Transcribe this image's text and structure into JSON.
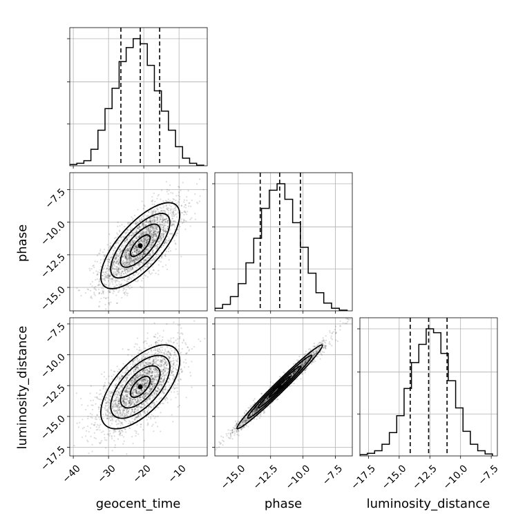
{
  "chart_data": {
    "type": "corner",
    "parameters": [
      "geocent_time",
      "phase",
      "luminosity_distance"
    ],
    "axis_labels": [
      "geocent_time",
      "phase",
      "luminosity_distance"
    ],
    "ranges": {
      "geocent_time": [
        -41,
        -2
      ],
      "phase": [
        -16.8,
        -6.2
      ],
      "luminosity_distance": [
        -18.2,
        -7.0
      ]
    },
    "ticks": {
      "geocent_time": [
        -40,
        -30,
        -20,
        -10
      ],
      "phase": [
        -15.0,
        -12.5,
        -10.0,
        -7.5
      ],
      "luminosity_distance": [
        -17.5,
        -15.0,
        -12.5,
        -10.0,
        -7.5
      ]
    },
    "tick_labels": {
      "geocent_time": [
        "−40",
        "−30",
        "−20",
        "−10"
      ],
      "phase": [
        "−15.0",
        "−12.5",
        "−10.0",
        "−7.5"
      ],
      "luminosity_distance": [
        "−17.5",
        "−15.0",
        "−12.5",
        "−10.0",
        "−7.5"
      ]
    },
    "quantiles": {
      "geocent_time": [
        -26.5,
        -21.0,
        -15.5
      ],
      "phase": [
        -13.3,
        -11.8,
        -10.2
      ],
      "luminosity_distance": [
        -14.1,
        -12.6,
        -11.1
      ]
    },
    "histograms": {
      "geocent_time": {
        "edges": [
          -41,
          -39,
          -37,
          -35,
          -33,
          -31,
          -29,
          -27,
          -25,
          -23,
          -21,
          -19,
          -17,
          -15,
          -13,
          -11,
          -9,
          -7,
          -5,
          -3
        ],
        "counts": [
          0.01,
          0.02,
          0.04,
          0.13,
          0.28,
          0.45,
          0.61,
          0.82,
          0.93,
          1.0,
          0.96,
          0.79,
          0.59,
          0.43,
          0.28,
          0.15,
          0.06,
          0.02,
          0.005
        ]
      },
      "phase": {
        "edges": [
          -16.8,
          -16.2,
          -15.6,
          -15.0,
          -14.4,
          -13.8,
          -13.2,
          -12.6,
          -12.0,
          -11.4,
          -10.8,
          -10.2,
          -9.6,
          -9.0,
          -8.4,
          -7.8,
          -7.2,
          -6.6
        ],
        "counts": [
          0.02,
          0.05,
          0.11,
          0.21,
          0.37,
          0.56,
          0.79,
          0.93,
          0.98,
          0.86,
          0.68,
          0.49,
          0.29,
          0.14,
          0.06,
          0.02,
          0.005
        ]
      },
      "luminosity_distance": {
        "edges": [
          -18.2,
          -17.6,
          -17.0,
          -16.4,
          -15.8,
          -15.2,
          -14.6,
          -14.0,
          -13.4,
          -12.8,
          -12.2,
          -11.6,
          -11.0,
          -10.4,
          -9.8,
          -9.2,
          -8.6,
          -8.0,
          -7.4
        ],
        "counts": [
          0.01,
          0.02,
          0.04,
          0.09,
          0.18,
          0.31,
          0.52,
          0.72,
          0.86,
          0.98,
          0.95,
          0.79,
          0.58,
          0.37,
          0.19,
          0.09,
          0.04,
          0.015
        ]
      }
    },
    "pairs": [
      {
        "x": "geocent_time",
        "y": "phase",
        "mean": [
          -21.0,
          -11.8
        ],
        "sd": [
          5.6,
          1.65
        ],
        "corr": 0.72,
        "n_points": 2600
      },
      {
        "x": "geocent_time",
        "y": "luminosity_distance",
        "mean": [
          -21.0,
          -12.6
        ],
        "sd": [
          5.6,
          1.7
        ],
        "corr": 0.62,
        "n_points": 2600
      },
      {
        "x": "phase",
        "y": "luminosity_distance",
        "mean": [
          -11.8,
          -12.6
        ],
        "sd": [
          1.65,
          1.7
        ],
        "corr": 0.985,
        "n_points": 2600
      }
    ],
    "contour_levels_sigma": [
      0.5,
      1.0,
      1.5,
      2.0
    ],
    "grid": true
  }
}
